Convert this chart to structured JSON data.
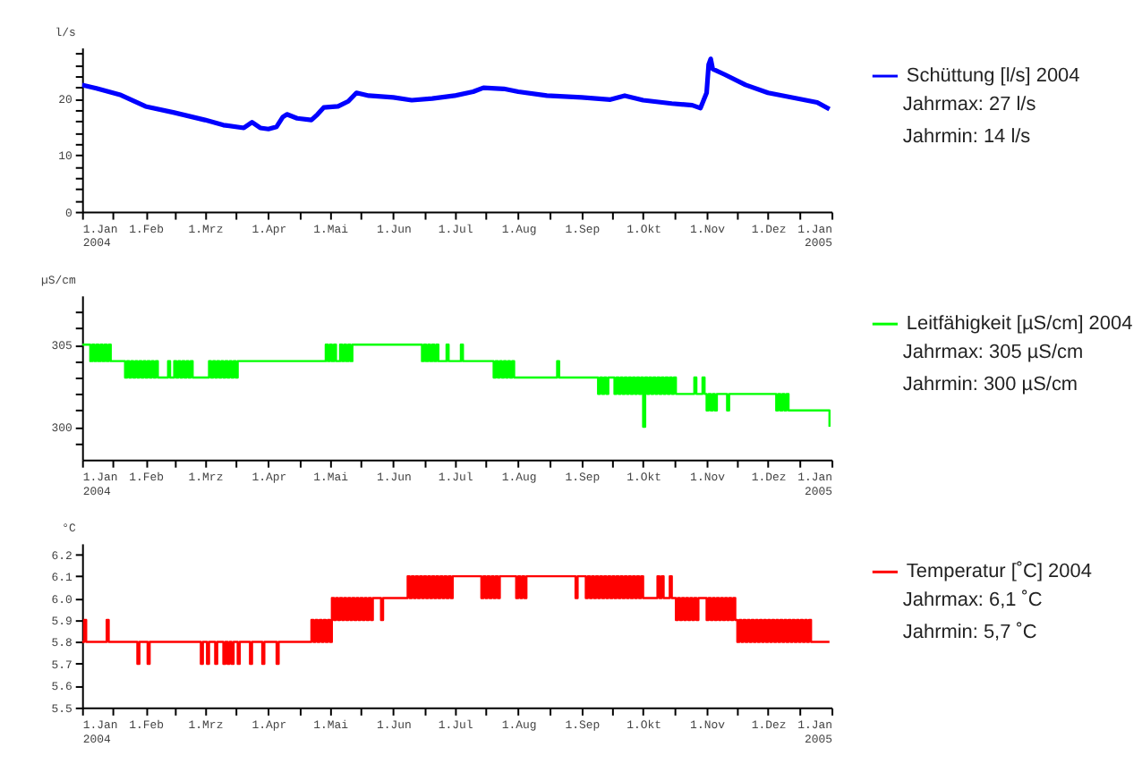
{
  "chart_data": [
    {
      "type": "line",
      "ylabel": "l/s",
      "legend": "right",
      "grid": false,
      "xlim": [
        "2004-01-01",
        "2005-01-01"
      ],
      "ylim": [
        0,
        29
      ],
      "xticks": [
        {
          "value": "2004-01-01",
          "label": "1.Jan\n2004"
        },
        {
          "value": "2004-01-16",
          "label": null
        },
        {
          "value": "2004-02-01",
          "label": "1.Feb"
        },
        {
          "value": "2004-02-15",
          "label": null
        },
        {
          "value": "2004-03-01",
          "label": "1.Mrz"
        },
        {
          "value": "2004-03-16",
          "label": null
        },
        {
          "value": "2004-04-01",
          "label": "1.Apr"
        },
        {
          "value": "2004-04-16",
          "label": null
        },
        {
          "value": "2004-05-01",
          "label": "1.Mai"
        },
        {
          "value": "2004-05-16",
          "label": null
        },
        {
          "value": "2004-06-01",
          "label": "1.Jun"
        },
        {
          "value": "2004-06-16",
          "label": null
        },
        {
          "value": "2004-07-01",
          "label": "1.Jul"
        },
        {
          "value": "2004-07-16",
          "label": null
        },
        {
          "value": "2004-08-01",
          "label": "1.Aug"
        },
        {
          "value": "2004-08-16",
          "label": null
        },
        {
          "value": "2004-09-01",
          "label": "1.Sep"
        },
        {
          "value": "2004-09-16",
          "label": null
        },
        {
          "value": "2004-10-01",
          "label": "1.Okt"
        },
        {
          "value": "2004-10-16",
          "label": null
        },
        {
          "value": "2004-11-01",
          "label": "1.Nov"
        },
        {
          "value": "2004-11-16",
          "label": null
        },
        {
          "value": "2004-12-01",
          "label": "1.Dez"
        },
        {
          "value": "2004-12-16",
          "label": null
        },
        {
          "value": "2005-01-01",
          "label": "1.Jan\n2005"
        }
      ],
      "yticks": [
        0,
        {
          "value": 2,
          "label": null
        },
        {
          "value": 4,
          "label": null
        },
        {
          "value": 6,
          "label": null
        },
        {
          "value": 8,
          "label": null
        },
        10,
        {
          "value": 12,
          "label": null
        },
        {
          "value": 14,
          "label": null
        },
        {
          "value": 16,
          "label": null
        },
        {
          "value": 18,
          "label": null
        },
        20,
        {
          "value": 22,
          "label": null
        },
        {
          "value": 24,
          "label": null
        },
        {
          "value": 26,
          "label": null
        },
        {
          "value": 28,
          "label": null
        }
      ],
      "annotations": [
        "Jahrmax:   27 l/s",
        "Jahrmin:    14 l/s"
      ],
      "series": [
        {
          "name": "Schüttung [l/s] 2004",
          "color": "#0000ff",
          "x": [
            "2004-01-01",
            "2004-01-08",
            "2004-01-20",
            "2004-02-01",
            "2004-02-15",
            "2004-03-01",
            "2004-03-10",
            "2004-03-20",
            "2004-03-24",
            "2004-03-28",
            "2004-04-01",
            "2004-04-05",
            "2004-04-08",
            "2004-04-10",
            "2004-04-15",
            "2004-04-22",
            "2004-04-25",
            "2004-04-28",
            "2004-05-05",
            "2004-05-10",
            "2004-05-14",
            "2004-05-20",
            "2004-06-01",
            "2004-06-10",
            "2004-06-20",
            "2004-07-01",
            "2004-07-10",
            "2004-07-15",
            "2004-07-25",
            "2004-08-01",
            "2004-08-15",
            "2004-09-01",
            "2004-09-15",
            "2004-09-22",
            "2004-10-01",
            "2004-10-15",
            "2004-10-25",
            "2004-10-29",
            "2004-11-01",
            "2004-11-02",
            "2004-11-03",
            "2004-11-04",
            "2004-11-10",
            "2004-11-20",
            "2004-12-01",
            "2004-12-15",
            "2004-12-25",
            "2004-12-31"
          ],
          "values": [
            22.4,
            21.8,
            20.6,
            18.6,
            17.5,
            16.2,
            15.3,
            14.8,
            15.8,
            14.8,
            14.6,
            15.0,
            16.7,
            17.2,
            16.5,
            16.2,
            17.2,
            18.4,
            18.6,
            19.5,
            21.0,
            20.5,
            20.2,
            19.7,
            20.0,
            20.5,
            21.2,
            21.9,
            21.7,
            21.2,
            20.5,
            20.2,
            19.8,
            20.5,
            19.7,
            19.1,
            18.8,
            18.3,
            21.0,
            26.0,
            27.0,
            25.2,
            24.2,
            22.4,
            21.0,
            20.0,
            19.3,
            18.1
          ]
        }
      ]
    },
    {
      "type": "step",
      "ylabel": "µS/cm",
      "legend": "right",
      "grid": false,
      "xlim": [
        "2004-01-01",
        "2005-01-01"
      ],
      "ylim": [
        298,
        308
      ],
      "xticks": [
        {
          "value": "2004-01-01",
          "label": "1.Jan\n2004"
        },
        {
          "value": "2004-01-16",
          "label": null
        },
        {
          "value": "2004-02-01",
          "label": "1.Feb"
        },
        {
          "value": "2004-02-15",
          "label": null
        },
        {
          "value": "2004-03-01",
          "label": "1.Mrz"
        },
        {
          "value": "2004-03-16",
          "label": null
        },
        {
          "value": "2004-04-01",
          "label": "1.Apr"
        },
        {
          "value": "2004-04-16",
          "label": null
        },
        {
          "value": "2004-05-01",
          "label": "1.Mai"
        },
        {
          "value": "2004-05-16",
          "label": null
        },
        {
          "value": "2004-06-01",
          "label": "1.Jun"
        },
        {
          "value": "2004-06-16",
          "label": null
        },
        {
          "value": "2004-07-01",
          "label": "1.Jul"
        },
        {
          "value": "2004-07-16",
          "label": null
        },
        {
          "value": "2004-08-01",
          "label": "1.Aug"
        },
        {
          "value": "2004-08-16",
          "label": null
        },
        {
          "value": "2004-09-01",
          "label": "1.Sep"
        },
        {
          "value": "2004-09-16",
          "label": null
        },
        {
          "value": "2004-10-01",
          "label": "1.Okt"
        },
        {
          "value": "2004-10-16",
          "label": null
        },
        {
          "value": "2004-11-01",
          "label": "1.Nov"
        },
        {
          "value": "2004-11-16",
          "label": null
        },
        {
          "value": "2004-12-01",
          "label": "1.Dez"
        },
        {
          "value": "2004-12-16",
          "label": null
        },
        {
          "value": "2005-01-01",
          "label": "1.Jan\n2005"
        }
      ],
      "yticks": [
        {
          "value": 299,
          "label": null
        },
        300,
        {
          "value": 301,
          "label": null
        },
        {
          "value": 302,
          "label": null
        },
        {
          "value": 303,
          "label": null
        },
        {
          "value": 304,
          "label": null
        },
        305,
        {
          "value": 306,
          "label": null
        },
        {
          "value": 307,
          "label": null
        }
      ],
      "annotations": [
        "Jahrmax: 305 µS/cm",
        "Jahrmin:  300 µS/cm"
      ],
      "series": [
        {
          "name": "Leitfähigkeit [µS/cm] 2004",
          "color": "#00ff00",
          "x": [
            "2004-01-01",
            "2004-01-05",
            "2004-01-06",
            "2004-01-07",
            "2004-01-08",
            "2004-01-09",
            "2004-01-10",
            "2004-01-11",
            "2004-01-12",
            "2004-01-13",
            "2004-01-14",
            "2004-01-15",
            "2004-01-22",
            "2004-01-23",
            "2004-01-24",
            "2004-01-25",
            "2004-01-26",
            "2004-01-27",
            "2004-01-28",
            "2004-01-29",
            "2004-01-30",
            "2004-01-31",
            "2004-02-01",
            "2004-02-02",
            "2004-02-03",
            "2004-02-04",
            "2004-02-05",
            "2004-02-06",
            "2004-02-07",
            "2004-02-12",
            "2004-02-13",
            "2004-02-15",
            "2004-02-16",
            "2004-02-17",
            "2004-02-18",
            "2004-02-19",
            "2004-02-20",
            "2004-02-21",
            "2004-02-22",
            "2004-02-23",
            "2004-02-24",
            "2004-03-03",
            "2004-03-04",
            "2004-03-05",
            "2004-03-06",
            "2004-03-07",
            "2004-03-08",
            "2004-03-09",
            "2004-03-10",
            "2004-03-11",
            "2004-03-12",
            "2004-03-13",
            "2004-03-14",
            "2004-03-15",
            "2004-03-16",
            "2004-03-17",
            "2004-04-29",
            "2004-04-30",
            "2004-05-01",
            "2004-05-02",
            "2004-05-03",
            "2004-05-04",
            "2004-05-06",
            "2004-05-07",
            "2004-05-08",
            "2004-05-09",
            "2004-05-10",
            "2004-05-11",
            "2004-05-12",
            "2004-06-15",
            "2004-06-16",
            "2004-06-17",
            "2004-06-18",
            "2004-06-19",
            "2004-06-20",
            "2004-06-21",
            "2004-06-22",
            "2004-06-23",
            "2004-06-27",
            "2004-06-28",
            "2004-07-04",
            "2004-07-05",
            "2004-07-20",
            "2004-07-21",
            "2004-07-22",
            "2004-07-23",
            "2004-07-24",
            "2004-07-25",
            "2004-07-26",
            "2004-07-27",
            "2004-07-28",
            "2004-07-29",
            "2004-07-30",
            "2004-08-20",
            "2004-08-21",
            "2004-09-09",
            "2004-09-10",
            "2004-09-11",
            "2004-09-12",
            "2004-09-13",
            "2004-09-14",
            "2004-09-17",
            "2004-09-18",
            "2004-09-19",
            "2004-09-20",
            "2004-09-21",
            "2004-09-22",
            "2004-09-23",
            "2004-09-24",
            "2004-09-25",
            "2004-09-26",
            "2004-09-27",
            "2004-09-28",
            "2004-09-29",
            "2004-09-30",
            "2004-10-01",
            "2004-10-02",
            "2004-10-03",
            "2004-10-04",
            "2004-10-05",
            "2004-10-06",
            "2004-10-07",
            "2004-10-08",
            "2004-10-09",
            "2004-10-10",
            "2004-10-11",
            "2004-10-12",
            "2004-10-13",
            "2004-10-14",
            "2004-10-15",
            "2004-10-16",
            "2004-10-17",
            "2004-10-26",
            "2004-10-27",
            "2004-10-30",
            "2004-10-31",
            "2004-11-01",
            "2004-11-02",
            "2004-11-03",
            "2004-11-04",
            "2004-11-05",
            "2004-11-06",
            "2004-11-11",
            "2004-11-12",
            "2004-12-05",
            "2004-12-06",
            "2004-12-07",
            "2004-12-08",
            "2004-12-09",
            "2004-12-10",
            "2004-12-11",
            "2004-12-31"
          ],
          "values": [
            305,
            304,
            305,
            304,
            305,
            304,
            305,
            304,
            305,
            304,
            305,
            304,
            303,
            304,
            303,
            304,
            303,
            304,
            303,
            304,
            303,
            304,
            303,
            304,
            303,
            304,
            303,
            304,
            303,
            304,
            303,
            304,
            303,
            304,
            303,
            304,
            303,
            304,
            303,
            304,
            303,
            304,
            303,
            304,
            303,
            304,
            303,
            304,
            303,
            304,
            303,
            304,
            303,
            304,
            303,
            304,
            305,
            304,
            305,
            304,
            305,
            304,
            305,
            304,
            305,
            304,
            305,
            304,
            305,
            304,
            305,
            304,
            305,
            304,
            305,
            304,
            305,
            304,
            305,
            304,
            305,
            304,
            303,
            304,
            303,
            304,
            303,
            304,
            303,
            304,
            303,
            304,
            303,
            304,
            303,
            302,
            303,
            302,
            303,
            302,
            303,
            302,
            303,
            302,
            303,
            302,
            303,
            302,
            303,
            302,
            303,
            302,
            303,
            302,
            303,
            300,
            303,
            302,
            303,
            302,
            303,
            302,
            303,
            302,
            303,
            302,
            303,
            302,
            303,
            302,
            303,
            302,
            303,
            302,
            303,
            302,
            301,
            302,
            301,
            302,
            301,
            302,
            301,
            302,
            301,
            302,
            301,
            302,
            301,
            302,
            301,
            300
          ]
        }
      ]
    },
    {
      "type": "step",
      "ylabel": "°C",
      "legend": "right",
      "grid": false,
      "xlim": [
        "2004-01-01",
        "2005-01-01"
      ],
      "ylim": [
        5.5,
        6.25
      ],
      "xticks": [
        {
          "value": "2004-01-01",
          "label": "1.Jan\n2004"
        },
        {
          "value": "2004-01-16",
          "label": null
        },
        {
          "value": "2004-02-01",
          "label": "1.Feb"
        },
        {
          "value": "2004-02-15",
          "label": null
        },
        {
          "value": "2004-03-01",
          "label": "1.Mrz"
        },
        {
          "value": "2004-03-16",
          "label": null
        },
        {
          "value": "2004-04-01",
          "label": "1.Apr"
        },
        {
          "value": "2004-04-16",
          "label": null
        },
        {
          "value": "2004-05-01",
          "label": "1.Mai"
        },
        {
          "value": "2004-05-16",
          "label": null
        },
        {
          "value": "2004-06-01",
          "label": "1.Jun"
        },
        {
          "value": "2004-06-16",
          "label": null
        },
        {
          "value": "2004-07-01",
          "label": "1.Jul"
        },
        {
          "value": "2004-07-16",
          "label": null
        },
        {
          "value": "2004-08-01",
          "label": "1.Aug"
        },
        {
          "value": "2004-08-16",
          "label": null
        },
        {
          "value": "2004-09-01",
          "label": "1.Sep"
        },
        {
          "value": "2004-09-16",
          "label": null
        },
        {
          "value": "2004-10-01",
          "label": "1.Okt"
        },
        {
          "value": "2004-10-16",
          "label": null
        },
        {
          "value": "2004-11-01",
          "label": "1.Nov"
        },
        {
          "value": "2004-11-16",
          "label": null
        },
        {
          "value": "2004-12-01",
          "label": "1.Dez"
        },
        {
          "value": "2004-12-16",
          "label": null
        },
        {
          "value": "2005-01-01",
          "label": "1.Jan\n2005"
        }
      ],
      "yticks": [
        5.5,
        5.6,
        5.7,
        5.8,
        5.9,
        {
          "value": 6.0,
          "label": "6.0"
        },
        6.1,
        6.2
      ],
      "annotations": [
        "Jahrmax:   6,1 ˚C",
        "Jahrmin:    5,7 ˚C"
      ],
      "series": [
        {
          "name": "Temperatur [˚C] 2004",
          "color": "#ff0000",
          "x": [
            "2004-01-01",
            "2004-01-02",
            "2004-01-03",
            "2004-01-13",
            "2004-01-14",
            "2004-01-28",
            "2004-01-29",
            "2004-02-02",
            "2004-02-03",
            "2004-02-28",
            "2004-02-29",
            "2004-03-02",
            "2004-03-03",
            "2004-03-06",
            "2004-03-07",
            "2004-03-10",
            "2004-03-11",
            "2004-03-12",
            "2004-03-13",
            "2004-03-14",
            "2004-03-15",
            "2004-03-17",
            "2004-03-18",
            "2004-03-23",
            "2004-03-24",
            "2004-03-29",
            "2004-03-30",
            "2004-04-05",
            "2004-04-06",
            "2004-04-22",
            "2004-04-23",
            "2004-04-24",
            "2004-04-25",
            "2004-04-26",
            "2004-04-27",
            "2004-04-28",
            "2004-04-29",
            "2004-04-30",
            "2004-05-01",
            "2004-05-02",
            "2004-05-03",
            "2004-05-04",
            "2004-05-05",
            "2004-05-06",
            "2004-05-07",
            "2004-05-08",
            "2004-05-09",
            "2004-05-10",
            "2004-05-11",
            "2004-05-12",
            "2004-05-13",
            "2004-05-14",
            "2004-05-15",
            "2004-05-16",
            "2004-05-17",
            "2004-05-18",
            "2004-05-19",
            "2004-05-20",
            "2004-05-21",
            "2004-05-22",
            "2004-05-26",
            "2004-05-27",
            "2004-06-08",
            "2004-06-09",
            "2004-06-10",
            "2004-06-11",
            "2004-06-12",
            "2004-06-13",
            "2004-06-14",
            "2004-06-15",
            "2004-06-16",
            "2004-06-17",
            "2004-06-18",
            "2004-06-19",
            "2004-06-20",
            "2004-06-21",
            "2004-06-22",
            "2004-06-23",
            "2004-06-24",
            "2004-06-25",
            "2004-06-26",
            "2004-06-27",
            "2004-06-28",
            "2004-06-29",
            "2004-06-30",
            "2004-07-14",
            "2004-07-15",
            "2004-07-16",
            "2004-07-17",
            "2004-07-18",
            "2004-07-19",
            "2004-07-20",
            "2004-07-21",
            "2004-07-22",
            "2004-07-23",
            "2004-07-31",
            "2004-08-01",
            "2004-08-02",
            "2004-08-03",
            "2004-08-04",
            "2004-08-05",
            "2004-08-29",
            "2004-08-30",
            "2004-09-03",
            "2004-09-04",
            "2004-09-05",
            "2004-09-06",
            "2004-09-07",
            "2004-09-08",
            "2004-09-09",
            "2004-09-10",
            "2004-09-11",
            "2004-09-12",
            "2004-09-13",
            "2004-09-14",
            "2004-09-15",
            "2004-09-16",
            "2004-09-17",
            "2004-09-18",
            "2004-09-19",
            "2004-09-20",
            "2004-09-21",
            "2004-09-22",
            "2004-09-23",
            "2004-09-24",
            "2004-09-25",
            "2004-09-26",
            "2004-09-27",
            "2004-09-28",
            "2004-09-29",
            "2004-09-30",
            "2004-10-01",
            "2004-10-08",
            "2004-10-09",
            "2004-10-10",
            "2004-10-11",
            "2004-10-14",
            "2004-10-15",
            "2004-10-17",
            "2004-10-18",
            "2004-10-19",
            "2004-10-20",
            "2004-10-21",
            "2004-10-22",
            "2004-10-23",
            "2004-10-24",
            "2004-10-25",
            "2004-10-26",
            "2004-10-27",
            "2004-10-28",
            "2004-11-01",
            "2004-11-02",
            "2004-11-03",
            "2004-11-04",
            "2004-11-05",
            "2004-11-06",
            "2004-11-07",
            "2004-11-08",
            "2004-11-09",
            "2004-11-10",
            "2004-11-11",
            "2004-11-12",
            "2004-11-13",
            "2004-11-14",
            "2004-11-15",
            "2004-11-16",
            "2004-11-17",
            "2004-11-18",
            "2004-11-19",
            "2004-11-20",
            "2004-11-21",
            "2004-11-22",
            "2004-11-23",
            "2004-11-24",
            "2004-11-25",
            "2004-11-26",
            "2004-11-27",
            "2004-11-28",
            "2004-11-29",
            "2004-11-30",
            "2004-12-01",
            "2004-12-02",
            "2004-12-03",
            "2004-12-04",
            "2004-12-05",
            "2004-12-06",
            "2004-12-07",
            "2004-12-08",
            "2004-12-09",
            "2004-12-10",
            "2004-12-11",
            "2004-12-12",
            "2004-12-13",
            "2004-12-14",
            "2004-12-15",
            "2004-12-16",
            "2004-12-17",
            "2004-12-18",
            "2004-12-19",
            "2004-12-20",
            "2004-12-21",
            "2004-12-22",
            "2004-12-31"
          ],
          "values": [
            5.8,
            5.9,
            5.8,
            5.9,
            5.8,
            5.7,
            5.8,
            5.7,
            5.8,
            5.7,
            5.8,
            5.7,
            5.8,
            5.7,
            5.8,
            5.7,
            5.8,
            5.7,
            5.8,
            5.7,
            5.8,
            5.7,
            5.8,
            5.7,
            5.8,
            5.7,
            5.8,
            5.7,
            5.8,
            5.9,
            5.8,
            5.9,
            5.8,
            5.9,
            5.8,
            5.9,
            5.8,
            5.9,
            5.8,
            6.0,
            5.9,
            6.0,
            5.9,
            6.0,
            5.9,
            6.0,
            5.9,
            6.0,
            5.9,
            6.0,
            5.9,
            6.0,
            5.9,
            6.0,
            5.9,
            6.0,
            5.9,
            6.0,
            5.9,
            6.0,
            5.9,
            6.0,
            6.1,
            6.0,
            6.1,
            6.0,
            6.1,
            6.0,
            6.1,
            6.0,
            6.1,
            6.0,
            6.1,
            6.0,
            6.1,
            6.0,
            6.1,
            6.0,
            6.1,
            6.0,
            6.1,
            6.0,
            6.1,
            6.0,
            6.1,
            6.0,
            6.1,
            6.0,
            6.1,
            6.0,
            6.1,
            6.0,
            6.1,
            6.0,
            6.1,
            6.0,
            6.1,
            6.0,
            6.1,
            6.0,
            6.1,
            6.0,
            6.1,
            6.0,
            6.1,
            6.0,
            6.1,
            6.0,
            6.1,
            6.0,
            6.1,
            6.0,
            6.1,
            6.0,
            6.1,
            6.0,
            6.1,
            6.0,
            6.1,
            6.0,
            6.1,
            6.0,
            6.1,
            6.0,
            6.1,
            6.0,
            6.1,
            6.0,
            6.1,
            6.0,
            6.1,
            6.0,
            6.1,
            6.0,
            6.1,
            6.0,
            6.1,
            6.0,
            5.9,
            6.0,
            5.9,
            6.0,
            5.9,
            6.0,
            5.9,
            6.0,
            5.9,
            6.0,
            5.9,
            6.0,
            5.9,
            6.0,
            5.9,
            6.0,
            5.9,
            6.0,
            5.9,
            6.0,
            5.9,
            6.0,
            5.9,
            6.0,
            5.9,
            6.0,
            5.9,
            5.8,
            5.9,
            5.8,
            5.9,
            5.8,
            5.9,
            5.8,
            5.9,
            5.8,
            5.9,
            5.8,
            5.9,
            5.8,
            5.9,
            5.8,
            5.9,
            5.8,
            5.9,
            5.8,
            5.9,
            5.8,
            5.9,
            5.8,
            5.9,
            5.8,
            5.9,
            5.8,
            5.9,
            5.8,
            5.9,
            5.8,
            5.9,
            5.8,
            5.9,
            5.8,
            5.9,
            5.8,
            5.8
          ]
        }
      ]
    }
  ]
}
